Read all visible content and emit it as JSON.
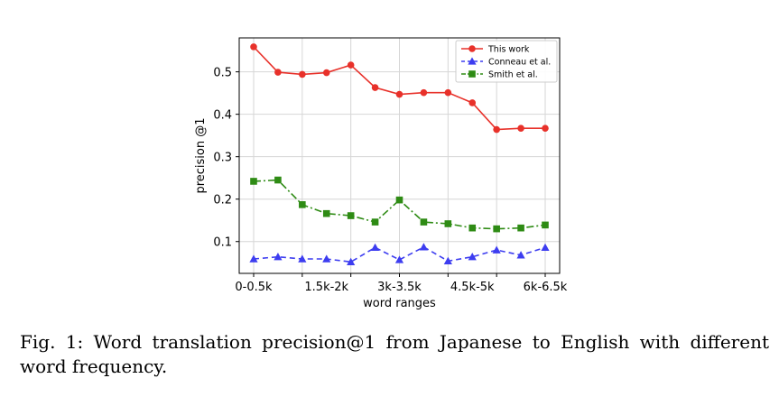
{
  "chart_data": {
    "type": "line",
    "xlabel": "word ranges",
    "ylabel": "precision @1",
    "ylim": [
      0.025,
      0.58
    ],
    "y_ticks": [
      0.1,
      0.2,
      0.3,
      0.4,
      0.5
    ],
    "y_tick_labels": [
      "0.1",
      "0.2",
      "0.3",
      "0.4",
      "0.5"
    ],
    "x_tick_positions": [
      0,
      2,
      4,
      6,
      8,
      10,
      12
    ],
    "x_tick_labels": [
      "0-0.5k",
      "",
      "1.5k-2k",
      "",
      "3k-3.5k",
      "",
      "4.5k-5k",
      "",
      "6k-6.5k"
    ],
    "x_tick_label_positions": [
      0,
      1,
      3,
      4,
      6,
      7,
      9,
      10,
      12
    ],
    "grid": true,
    "legend_position": "top-right",
    "series": [
      {
        "name": "This work",
        "color": "#e8312a",
        "line_style": "solid",
        "marker": "circle",
        "values": [
          0.559,
          0.499,
          0.494,
          0.498,
          0.516,
          0.463,
          0.447,
          0.451,
          0.451,
          0.427,
          0.364,
          0.367,
          0.367
        ]
      },
      {
        "name": "Conneau et al.",
        "color": "#3d3df0",
        "line_style": "dashed",
        "marker": "triangle",
        "values": [
          0.059,
          0.064,
          0.059,
          0.059,
          0.052,
          0.086,
          0.057,
          0.087,
          0.054,
          0.064,
          0.08,
          0.068,
          0.086
        ]
      },
      {
        "name": "Smith et al.",
        "color": "#2e8b14",
        "line_style": "dashdot",
        "marker": "square",
        "values": [
          0.242,
          0.245,
          0.187,
          0.166,
          0.161,
          0.146,
          0.198,
          0.146,
          0.142,
          0.132,
          0.13,
          0.132,
          0.139
        ]
      }
    ]
  },
  "caption": {
    "text": "Fig. 1: Word translation precision@1 from Japanese to English with different word frequency."
  }
}
